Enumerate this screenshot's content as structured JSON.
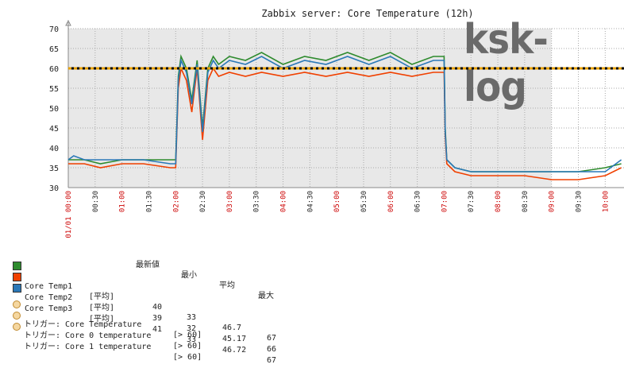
{
  "watermark": "ksk-log",
  "chart_data": {
    "type": "line",
    "title": "Zabbix server: Core Temperature (12h)",
    "ylim": [
      30,
      70
    ],
    "yticks": [
      30,
      35,
      40,
      45,
      50,
      55,
      60,
      65,
      70
    ],
    "xticks": [
      "01/01 00:00",
      "00:30",
      "01:00",
      "01:30",
      "02:00",
      "02:30",
      "03:00",
      "03:30",
      "04:00",
      "04:30",
      "05:00",
      "05:30",
      "06:00",
      "06:30",
      "07:00",
      "07:30",
      "08:00",
      "08:30",
      "09:00",
      "09:30",
      "10:00"
    ],
    "xtick_red": [
      true,
      false,
      true,
      false,
      true,
      false,
      true,
      false,
      true,
      false,
      true,
      false,
      true,
      false,
      true,
      false,
      true,
      false,
      true,
      false,
      true
    ],
    "x_hours_range": [
      0,
      10.35
    ],
    "night_shading_until_hours": 9.0,
    "threshold": 60,
    "grid": true,
    "colors": {
      "temp1": "#2e8b2e",
      "temp2": "#f04000",
      "temp3": "#2a78b8",
      "threshold": "#e8a000",
      "label_red": "#cc0000"
    },
    "series": [
      {
        "name": "Core Temp1",
        "color": "#2e8b2e",
        "x": [
          0,
          0.1,
          0.3,
          0.6,
          1.0,
          1.4,
          1.9,
          2.0,
          2.02,
          2.05,
          2.1,
          2.2,
          2.3,
          2.4,
          2.5,
          2.6,
          2.7,
          2.8,
          3.0,
          3.3,
          3.6,
          4.0,
          4.4,
          4.8,
          5.2,
          5.6,
          6.0,
          6.4,
          6.8,
          7.0,
          7.02,
          7.05,
          7.2,
          7.5,
          8.0,
          8.5,
          9.0,
          9.5,
          10.0,
          10.3
        ],
        "y": [
          37,
          37,
          37,
          36,
          37,
          37,
          37,
          37,
          45,
          58,
          63,
          60,
          52,
          62,
          45,
          60,
          63,
          61,
          63,
          62,
          64,
          61,
          63,
          62,
          64,
          62,
          64,
          61,
          63,
          63,
          45,
          37,
          35,
          34,
          34,
          34,
          34,
          34,
          35,
          36
        ]
      },
      {
        "name": "Core Temp2",
        "color": "#f04000",
        "x": [
          0,
          0.1,
          0.3,
          0.6,
          1.0,
          1.4,
          1.9,
          2.0,
          2.02,
          2.05,
          2.1,
          2.2,
          2.3,
          2.4,
          2.5,
          2.6,
          2.7,
          2.8,
          3.0,
          3.3,
          3.6,
          4.0,
          4.4,
          4.8,
          5.2,
          5.6,
          6.0,
          6.4,
          6.8,
          7.0,
          7.02,
          7.05,
          7.2,
          7.5,
          8.0,
          8.5,
          9.0,
          9.5,
          10.0,
          10.3
        ],
        "y": [
          36,
          36,
          36,
          35,
          36,
          36,
          35,
          35,
          43,
          55,
          60,
          57,
          49,
          60,
          42,
          57,
          60,
          58,
          59,
          58,
          59,
          58,
          59,
          58,
          59,
          58,
          59,
          58,
          59,
          59,
          43,
          36,
          34,
          33,
          33,
          33,
          32,
          32,
          33,
          35
        ]
      },
      {
        "name": "Core Temp3",
        "color": "#2a78b8",
        "x": [
          0,
          0.1,
          0.3,
          0.6,
          1.0,
          1.4,
          1.9,
          2.0,
          2.02,
          2.05,
          2.1,
          2.2,
          2.3,
          2.4,
          2.5,
          2.6,
          2.7,
          2.8,
          3.0,
          3.3,
          3.6,
          4.0,
          4.4,
          4.8,
          5.2,
          5.6,
          6.0,
          6.4,
          6.8,
          7.0,
          7.02,
          7.05,
          7.2,
          7.5,
          8.0,
          8.5,
          9.0,
          9.5,
          10.0,
          10.3
        ],
        "y": [
          37,
          38,
          37,
          37,
          37,
          37,
          36,
          36,
          44,
          57,
          62,
          59,
          51,
          61,
          44,
          59,
          62,
          60,
          62,
          61,
          63,
          60,
          62,
          61,
          63,
          61,
          63,
          60,
          62,
          62,
          44,
          37,
          35,
          34,
          34,
          34,
          34,
          34,
          34,
          37
        ]
      }
    ]
  },
  "legend": {
    "headers": {
      "last": "最新値",
      "min": "最小",
      "avg": "平均",
      "max": "最大"
    },
    "rows": [
      {
        "name": "Core Temp1",
        "func": "[平均]",
        "last": "40",
        "min": "33",
        "avg": "46.7",
        "max": "67",
        "color": "#2e8b2e"
      },
      {
        "name": "Core Temp2",
        "func": "[平均]",
        "last": "39",
        "min": "32",
        "avg": "45.17",
        "max": "66",
        "color": "#f04000"
      },
      {
        "name": "Core Temp3",
        "func": "[平均]",
        "last": "41",
        "min": "33",
        "avg": "46.72",
        "max": "67",
        "color": "#2a78b8"
      }
    ],
    "triggers": [
      {
        "label": "トリガー: Core Temperature",
        "cond": "[> 60]"
      },
      {
        "label": "トリガー: Core 0 temperature",
        "cond": "[> 60]"
      },
      {
        "label": "トリガー: Core 1 temperature",
        "cond": "[> 60]"
      }
    ]
  }
}
